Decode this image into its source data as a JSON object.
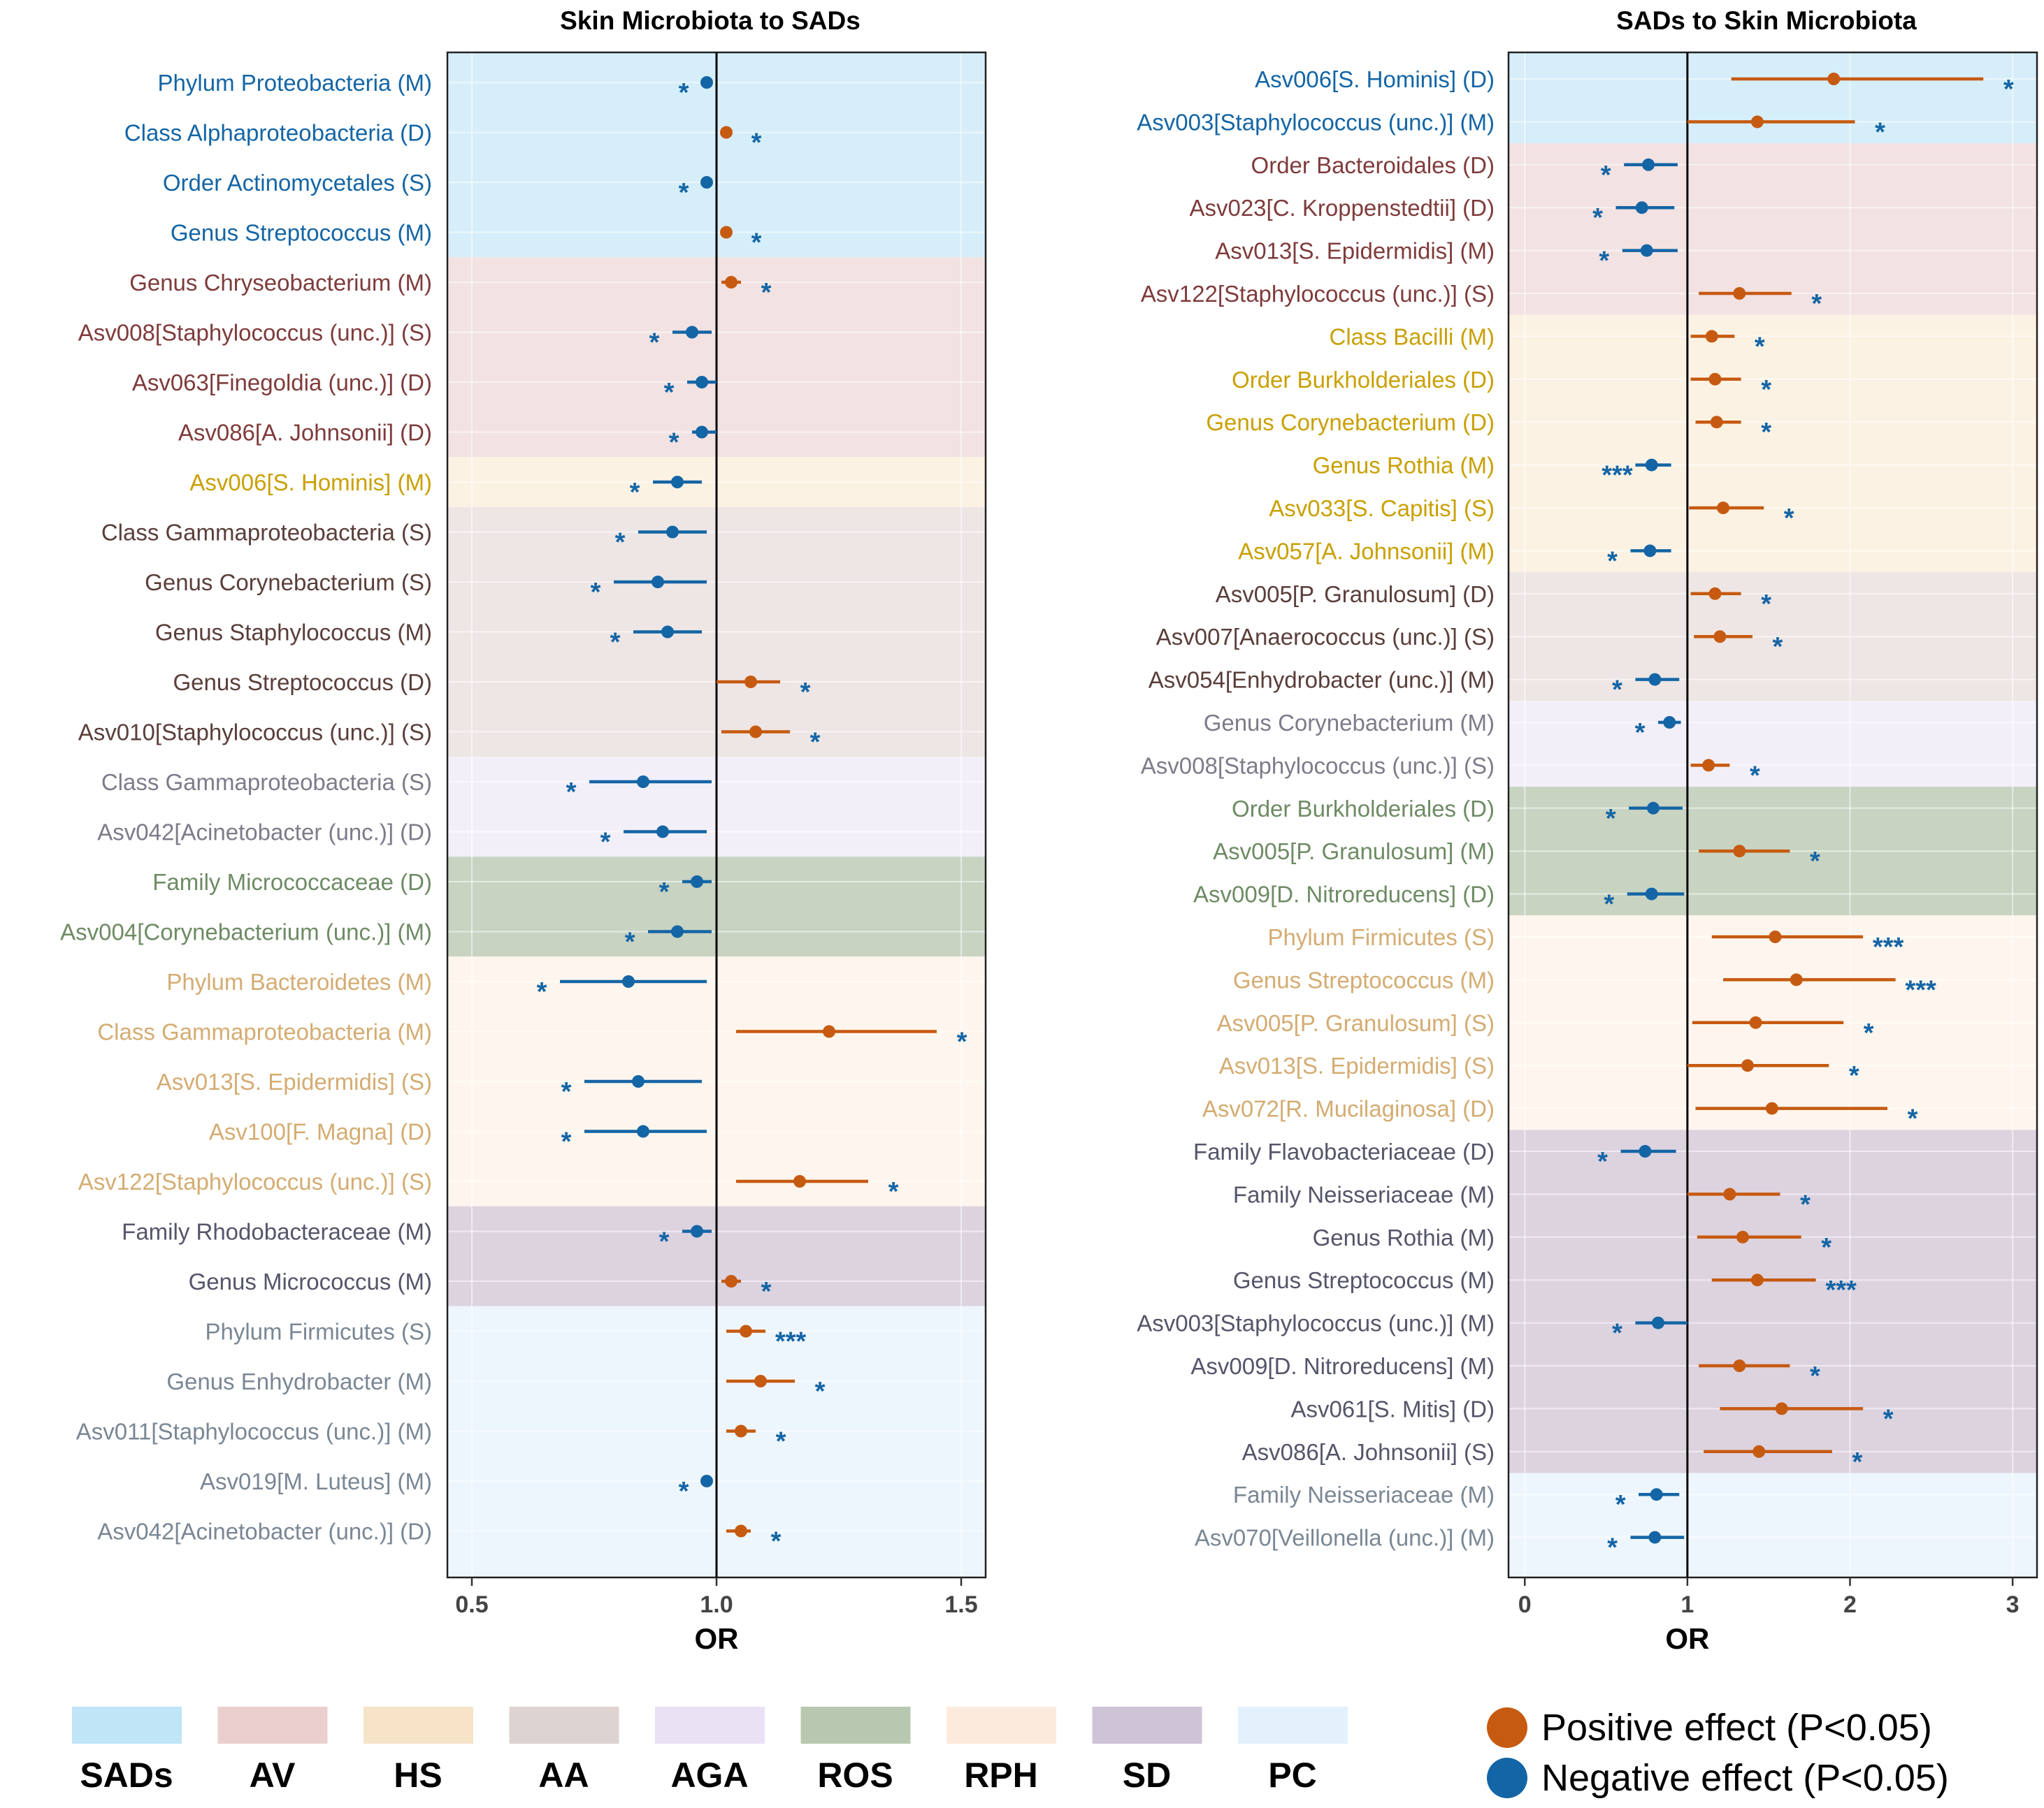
{
  "colors": {
    "positive": "#C65A10",
    "negative": "#1465A5",
    "categories": {
      "SADs": {
        "bg": "#D6EEF9",
        "label": "#1465A5",
        "swatch": "#BFE5F6"
      },
      "AV": {
        "bg": "#F2E2E2",
        "label": "#7F3B3B",
        "swatch": "#EBCFCF"
      },
      "HS": {
        "bg": "#FCF2E4",
        "label": "#C9A003",
        "swatch": "#F6E3C8"
      },
      "AA": {
        "bg": "#EDE6E4",
        "label": "#5A3E3A",
        "swatch": "#DDD3D1"
      },
      "AGA": {
        "bg": "#F3EFF9",
        "label": "#7C7C8A",
        "swatch": "#EAE2F4"
      },
      "ROS": {
        "bg": "#C8D3C2",
        "label": "#6E8B64",
        "swatch": "#B8C8B0"
      },
      "RPH": {
        "bg": "#FEF6EE",
        "label": "#D4AC72",
        "swatch": "#FCEBDD"
      },
      "SD": {
        "bg": "#DCD3DF",
        "label": "#55556A",
        "swatch": "#CFC3D6"
      },
      "PC": {
        "bg": "#EEF6FD",
        "label": "#7A8794",
        "swatch": "#E3F1FC"
      }
    }
  },
  "chart_data": [
    {
      "type": "forest",
      "title": "Skin Microbiota to SADs",
      "xlabel": "OR",
      "xlim": [
        0.45,
        1.55
      ],
      "ref_line": 1.0,
      "xticks": [
        {
          "v": 0.5,
          "label": "0.5"
        },
        {
          "v": 1.0,
          "label": "1.0"
        },
        {
          "v": 1.5,
          "label": "1.5"
        }
      ],
      "groups": [
        {
          "category": "SADs",
          "rows": [
            {
              "label": "Phylum Proteobacteria (M)",
              "or": 0.98,
              "lo": 0.97,
              "hi": 0.99,
              "sig": "*"
            },
            {
              "label": "Class Alphaproteobacteria (D)",
              "or": 1.02,
              "lo": 1.01,
              "hi": 1.03,
              "sig": "*"
            },
            {
              "label": "Order Actinomycetales (S)",
              "or": 0.98,
              "lo": 0.97,
              "hi": 0.99,
              "sig": "*"
            },
            {
              "label": "Genus Streptococcus (M)",
              "or": 1.02,
              "lo": 1.01,
              "hi": 1.03,
              "sig": "*"
            }
          ]
        },
        {
          "category": "AV",
          "rows": [
            {
              "label": "Genus Chryseobacterium (M)",
              "or": 1.03,
              "lo": 1.01,
              "hi": 1.05,
              "sig": "*"
            },
            {
              "label": "Asv008[Staphylococcus (unc.)] (S)",
              "or": 0.95,
              "lo": 0.91,
              "hi": 0.99,
              "sig": "*"
            },
            {
              "label": "Asv063[Finegoldia (unc.)] (D)",
              "or": 0.97,
              "lo": 0.94,
              "hi": 1.0,
              "sig": "*"
            },
            {
              "label": "Asv086[A. Johnsonii] (D)",
              "or": 0.97,
              "lo": 0.95,
              "hi": 1.0,
              "sig": "*"
            }
          ]
        },
        {
          "category": "HS",
          "rows": [
            {
              "label": "Asv006[S. Hominis] (M)",
              "or": 0.92,
              "lo": 0.87,
              "hi": 0.97,
              "sig": "*"
            }
          ]
        },
        {
          "category": "AA",
          "rows": [
            {
              "label": "Class Gammaproteobacteria (S)",
              "or": 0.91,
              "lo": 0.84,
              "hi": 0.98,
              "sig": "*"
            },
            {
              "label": "Genus Corynebacterium (S)",
              "or": 0.88,
              "lo": 0.79,
              "hi": 0.98,
              "sig": "*"
            },
            {
              "label": "Genus Staphylococcus (M)",
              "or": 0.9,
              "lo": 0.83,
              "hi": 0.97,
              "sig": "*"
            },
            {
              "label": "Genus Streptococcus (D)",
              "or": 1.07,
              "lo": 1.0,
              "hi": 1.13,
              "sig": "*"
            },
            {
              "label": "Asv010[Staphylococcus (unc.)] (S)",
              "or": 1.08,
              "lo": 1.01,
              "hi": 1.15,
              "sig": "*"
            }
          ]
        },
        {
          "category": "AGA",
          "rows": [
            {
              "label": "Class Gammaproteobacteria (S)",
              "or": 0.85,
              "lo": 0.74,
              "hi": 0.99,
              "sig": "*"
            },
            {
              "label": "Asv042[Acinetobacter (unc.)] (D)",
              "or": 0.89,
              "lo": 0.81,
              "hi": 0.98,
              "sig": "*"
            }
          ]
        },
        {
          "category": "ROS",
          "rows": [
            {
              "label": "Family Micrococcaceae (D)",
              "or": 0.96,
              "lo": 0.93,
              "hi": 0.99,
              "sig": "*"
            },
            {
              "label": "Asv004[Corynebacterium (unc.)] (M)",
              "or": 0.92,
              "lo": 0.86,
              "hi": 0.99,
              "sig": "*"
            }
          ]
        },
        {
          "category": "RPH",
          "rows": [
            {
              "label": "Phylum Bacteroidetes (M)",
              "or": 0.82,
              "lo": 0.68,
              "hi": 0.98,
              "sig": "*"
            },
            {
              "label": "Class Gammaproteobacteria (M)",
              "or": 1.23,
              "lo": 1.04,
              "hi": 1.45,
              "sig": "*"
            },
            {
              "label": "Asv013[S. Epidermidis] (S)",
              "or": 0.84,
              "lo": 0.73,
              "hi": 0.97,
              "sig": "*"
            },
            {
              "label": "Asv100[F. Magna] (D)",
              "or": 0.85,
              "lo": 0.73,
              "hi": 0.98,
              "sig": "*"
            },
            {
              "label": "Asv122[Staphylococcus (unc.)] (S)",
              "or": 1.17,
              "lo": 1.04,
              "hi": 1.31,
              "sig": "*"
            }
          ]
        },
        {
          "category": "SD",
          "rows": [
            {
              "label": "Family Rhodobacteraceae (M)",
              "or": 0.96,
              "lo": 0.93,
              "hi": 0.99,
              "sig": "*"
            },
            {
              "label": "Genus Micrococcus (M)",
              "or": 1.03,
              "lo": 1.01,
              "hi": 1.05,
              "sig": "*"
            }
          ]
        },
        {
          "category": "PC",
          "rows": [
            {
              "label": "Phylum Firmicutes (S)",
              "or": 1.06,
              "lo": 1.02,
              "hi": 1.1,
              "sig": "***"
            },
            {
              "label": "Genus Enhydrobacter (M)",
              "or": 1.09,
              "lo": 1.02,
              "hi": 1.16,
              "sig": "*"
            },
            {
              "label": "Asv011[Staphylococcus (unc.)] (M)",
              "or": 1.05,
              "lo": 1.02,
              "hi": 1.08,
              "sig": "*"
            },
            {
              "label": "Asv019[M. Luteus] (M)",
              "or": 0.98,
              "lo": 0.97,
              "hi": 0.99,
              "sig": "*"
            },
            {
              "label": "Asv042[Acinetobacter (unc.)] (D)",
              "or": 1.05,
              "lo": 1.02,
              "hi": 1.07,
              "sig": "*"
            }
          ]
        }
      ]
    },
    {
      "type": "forest",
      "title": "SADs to Skin Microbiota",
      "xlabel": "OR",
      "xlim": [
        -0.1,
        3.15
      ],
      "ref_line": 1.0,
      "xticks": [
        {
          "v": 0,
          "label": "0"
        },
        {
          "v": 1,
          "label": "1"
        },
        {
          "v": 2,
          "label": "2"
        },
        {
          "v": 3,
          "label": "3"
        }
      ],
      "groups": [
        {
          "category": "SADs",
          "rows": [
            {
              "label": "Asv006[S. Hominis] (D)",
              "or": 1.9,
              "lo": 1.27,
              "hi": 2.82,
              "sig": "*"
            },
            {
              "label": "Asv003[Staphylococcus (unc.)] (M)",
              "or": 1.43,
              "lo": 1.0,
              "hi": 2.03,
              "sig": "*"
            }
          ]
        },
        {
          "category": "AV",
          "rows": [
            {
              "label": "Order Bacteroidales (D)",
              "or": 0.76,
              "lo": 0.61,
              "hi": 0.94,
              "sig": "*"
            },
            {
              "label": "Asv023[C. Kroppenstedtii] (D)",
              "or": 0.72,
              "lo": 0.56,
              "hi": 0.92,
              "sig": "*"
            },
            {
              "label": "Asv013[S. Epidermidis] (M)",
              "or": 0.75,
              "lo": 0.6,
              "hi": 0.94,
              "sig": "*"
            },
            {
              "label": "Asv122[Staphylococcus (unc.)] (S)",
              "or": 1.32,
              "lo": 1.07,
              "hi": 1.64,
              "sig": "*"
            }
          ]
        },
        {
          "category": "HS",
          "rows": [
            {
              "label": "Class Bacilli (M)",
              "or": 1.15,
              "lo": 1.02,
              "hi": 1.29,
              "sig": "*"
            },
            {
              "label": "Order Burkholderiales (D)",
              "or": 1.17,
              "lo": 1.02,
              "hi": 1.33,
              "sig": "*"
            },
            {
              "label": "Genus Corynebacterium (D)",
              "or": 1.18,
              "lo": 1.05,
              "hi": 1.33,
              "sig": "*"
            },
            {
              "label": "Genus Rothia (M)",
              "or": 0.78,
              "lo": 0.68,
              "hi": 0.9,
              "sig": "***"
            },
            {
              "label": "Asv033[S. Capitis] (S)",
              "or": 1.22,
              "lo": 1.01,
              "hi": 1.47,
              "sig": "*"
            },
            {
              "label": "Asv057[A. Johnsonii] (M)",
              "or": 0.77,
              "lo": 0.65,
              "hi": 0.9,
              "sig": "*"
            }
          ]
        },
        {
          "category": "AA",
          "rows": [
            {
              "label": "Asv005[P. Granulosum] (D)",
              "or": 1.17,
              "lo": 1.02,
              "hi": 1.33,
              "sig": "*"
            },
            {
              "label": "Asv007[Anaerococcus (unc.)] (S)",
              "or": 1.2,
              "lo": 1.04,
              "hi": 1.4,
              "sig": "*"
            },
            {
              "label": "Asv054[Enhydrobacter (unc.)] (M)",
              "or": 0.8,
              "lo": 0.68,
              "hi": 0.95,
              "sig": "*"
            }
          ]
        },
        {
          "category": "AGA",
          "rows": [
            {
              "label": "Genus Corynebacterium (M)",
              "or": 0.89,
              "lo": 0.82,
              "hi": 0.96,
              "sig": "*"
            },
            {
              "label": "Asv008[Staphylococcus (unc.)] (S)",
              "or": 1.13,
              "lo": 1.02,
              "hi": 1.26,
              "sig": "*"
            }
          ]
        },
        {
          "category": "ROS",
          "rows": [
            {
              "label": "Order Burkholderiales (D)",
              "or": 0.79,
              "lo": 0.64,
              "hi": 0.97,
              "sig": "*"
            },
            {
              "label": "Asv005[P. Granulosum] (M)",
              "or": 1.32,
              "lo": 1.07,
              "hi": 1.63,
              "sig": "*"
            },
            {
              "label": "Asv009[D. Nitroreducens] (D)",
              "or": 0.78,
              "lo": 0.63,
              "hi": 0.98,
              "sig": "*"
            }
          ]
        },
        {
          "category": "RPH",
          "rows": [
            {
              "label": "Phylum Firmicutes (S)",
              "or": 1.54,
              "lo": 1.15,
              "hi": 2.08,
              "sig": "***"
            },
            {
              "label": "Genus Streptococcus (M)",
              "or": 1.67,
              "lo": 1.22,
              "hi": 2.28,
              "sig": "***"
            },
            {
              "label": "Asv005[P. Granulosum] (S)",
              "or": 1.42,
              "lo": 1.03,
              "hi": 1.96,
              "sig": "*"
            },
            {
              "label": "Asv013[S. Epidermidis] (S)",
              "or": 1.37,
              "lo": 1.0,
              "hi": 1.87,
              "sig": "*"
            },
            {
              "label": "Asv072[R. Mucilaginosa] (D)",
              "or": 1.52,
              "lo": 1.05,
              "hi": 2.23,
              "sig": "*"
            }
          ]
        },
        {
          "category": "SD",
          "rows": [
            {
              "label": "Family Flavobacteriaceae (D)",
              "or": 0.74,
              "lo": 0.59,
              "hi": 0.93,
              "sig": "*"
            },
            {
              "label": "Family Neisseriaceae (M)",
              "or": 1.26,
              "lo": 1.0,
              "hi": 1.57,
              "sig": "*"
            },
            {
              "label": "Genus Rothia (M)",
              "or": 1.34,
              "lo": 1.06,
              "hi": 1.7,
              "sig": "*"
            },
            {
              "label": "Genus Streptococcus (M)",
              "or": 1.43,
              "lo": 1.15,
              "hi": 1.79,
              "sig": "***"
            },
            {
              "label": "Asv003[Staphylococcus (unc.)] (M)",
              "or": 0.82,
              "lo": 0.68,
              "hi": 1.0,
              "sig": "*"
            },
            {
              "label": "Asv009[D. Nitroreducens] (M)",
              "or": 1.32,
              "lo": 1.07,
              "hi": 1.63,
              "sig": "*"
            },
            {
              "label": "Asv061[S. Mitis] (D)",
              "or": 1.58,
              "lo": 1.2,
              "hi": 2.08,
              "sig": "*"
            },
            {
              "label": "Asv086[A. Johnsonii] (S)",
              "or": 1.44,
              "lo": 1.1,
              "hi": 1.89,
              "sig": "*"
            }
          ]
        },
        {
          "category": "PC",
          "rows": [
            {
              "label": "Family Neisseriaceae (M)",
              "or": 0.81,
              "lo": 0.7,
              "hi": 0.95,
              "sig": "*"
            },
            {
              "label": "Asv070[Veillonella (unc.)] (M)",
              "or": 0.8,
              "lo": 0.65,
              "hi": 0.98,
              "sig": "*"
            }
          ]
        }
      ]
    }
  ],
  "legend": {
    "categories": [
      "SADs",
      "AV",
      "HS",
      "AA",
      "AGA",
      "ROS",
      "RPH",
      "SD",
      "PC"
    ],
    "effects": [
      {
        "key": "positive",
        "label": "Positive effect (P<0.05)"
      },
      {
        "key": "negative",
        "label": "Negative effect (P<0.05)"
      }
    ]
  }
}
